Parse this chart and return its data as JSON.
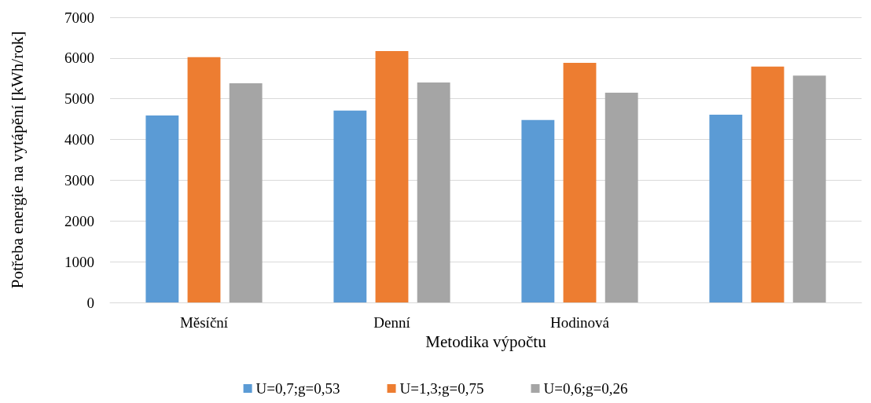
{
  "chart_data": {
    "type": "bar",
    "xlabel": "Metodika výpočtu",
    "ylabel": "Potřeba energie na vytápění [kWh/rok]",
    "categories": [
      "Měsíční",
      "Denní",
      "Hodinová",
      null
    ],
    "series": [
      {
        "name": "U=0,7;g=0,53",
        "color": "#5b9bd5",
        "values": [
          4590,
          4710,
          4480,
          4610
        ]
      },
      {
        "name": "U=1,3;g=0,75",
        "color": "#ed7d31",
        "values": [
          6020,
          6170,
          5880,
          5790
        ]
      },
      {
        "name": "U=0,6;g=0,26",
        "color": "#a5a5a5",
        "values": [
          5380,
          5400,
          5150,
          5570
        ]
      }
    ],
    "ylim": [
      0,
      7000
    ],
    "yticks": [
      0,
      1000,
      2000,
      3000,
      4000,
      5000,
      6000,
      7000
    ],
    "grid": "y",
    "legend": "bottom"
  }
}
